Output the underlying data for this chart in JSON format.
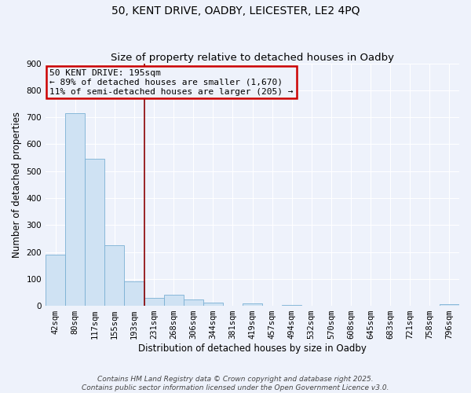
{
  "title": "50, KENT DRIVE, OADBY, LEICESTER, LE2 4PQ",
  "subtitle": "Size of property relative to detached houses in Oadby",
  "xlabel": "Distribution of detached houses by size in Oadby",
  "ylabel": "Number of detached properties",
  "bar_labels": [
    "42sqm",
    "80sqm",
    "117sqm",
    "155sqm",
    "193sqm",
    "231sqm",
    "268sqm",
    "306sqm",
    "344sqm",
    "381sqm",
    "419sqm",
    "457sqm",
    "494sqm",
    "532sqm",
    "570sqm",
    "608sqm",
    "645sqm",
    "683sqm",
    "721sqm",
    "758sqm",
    "796sqm"
  ],
  "bar_values": [
    190,
    715,
    547,
    226,
    90,
    30,
    40,
    25,
    13,
    0,
    8,
    0,
    4,
    0,
    0,
    0,
    0,
    0,
    0,
    0,
    5
  ],
  "bar_color": "#cfe2f3",
  "bar_edge_color": "#7ab0d4",
  "reference_line_color": "#8B0000",
  "annotation_text": "50 KENT DRIVE: 195sqm\n← 89% of detached houses are smaller (1,670)\n11% of semi-detached houses are larger (205) →",
  "annotation_box_edge_color": "#CC0000",
  "ylim": [
    0,
    900
  ],
  "yticks": [
    0,
    100,
    200,
    300,
    400,
    500,
    600,
    700,
    800,
    900
  ],
  "footer1": "Contains HM Land Registry data © Crown copyright and database right 2025.",
  "footer2": "Contains public sector information licensed under the Open Government Licence v3.0.",
  "background_color": "#eef2fb",
  "grid_color": "#ffffff",
  "title_fontsize": 10,
  "subtitle_fontsize": 9.5,
  "axis_label_fontsize": 8.5,
  "tick_fontsize": 7.5,
  "annotation_fontsize": 8,
  "footer_fontsize": 6.5
}
